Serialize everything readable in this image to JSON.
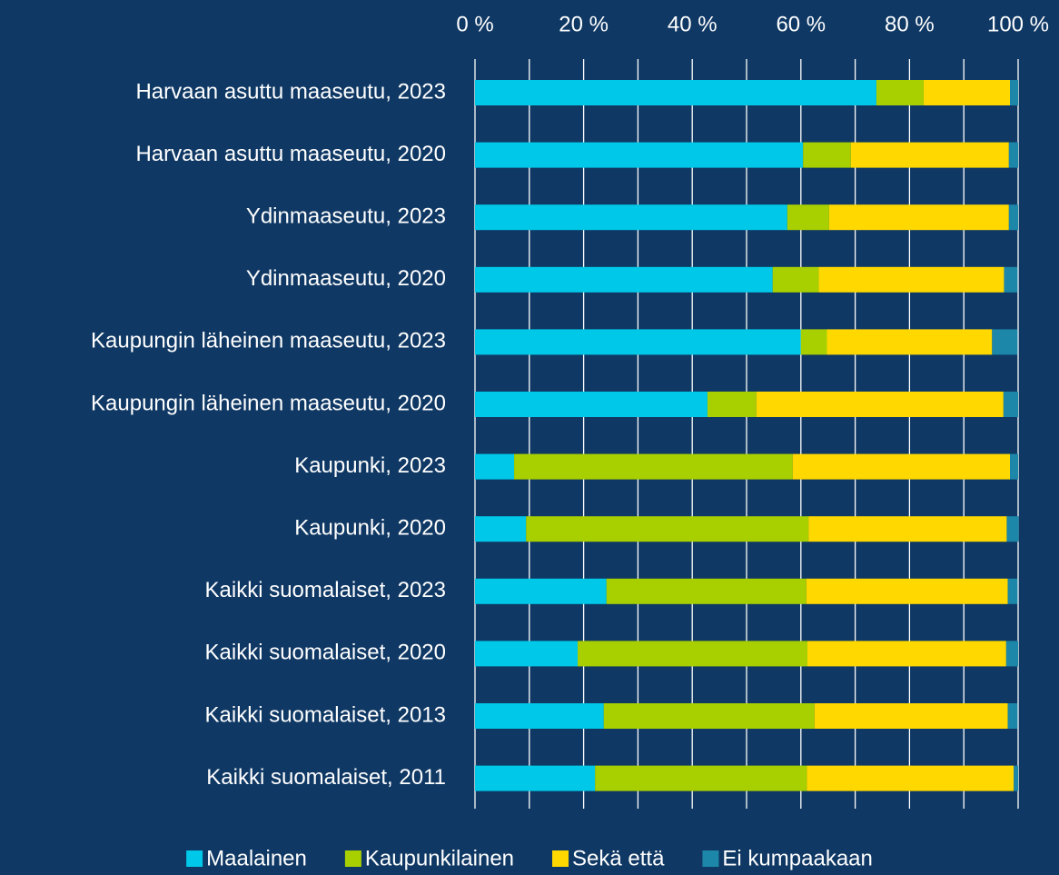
{
  "chart_data": {
    "type": "stacked-barh",
    "categories": [
      "Harvaan asuttu maaseutu, 2023",
      "Harvaan asuttu maaseutu, 2020",
      "Ydinmaaseutu, 2023",
      "Ydinmaaseutu, 2020",
      "Kaupungin läheinen maaseutu, 2023",
      "Kaupungin läheinen maaseutu, 2020",
      "Kaupunki, 2023",
      "Kaupunki, 2020",
      "Kaikki suomalaiset, 2023",
      "Kaikki suomalaiset, 2020",
      "Kaikki suomalaiset, 2013",
      "Kaikki suomalaiset, 2011"
    ],
    "series": [
      {
        "name": "Maalainen",
        "color": "#00c8e8",
        "values": [
          73.9,
          60.4,
          57.5,
          54.8,
          60.0,
          42.8,
          7.2,
          9.4,
          24.2,
          18.9,
          23.7,
          22.1
        ]
      },
      {
        "name": "Kaupunkilainen",
        "color": "#a8d000",
        "values": [
          8.7,
          8.8,
          7.7,
          8.5,
          4.8,
          9.0,
          51.3,
          52.0,
          36.8,
          42.3,
          38.8,
          39.0
        ]
      },
      {
        "name": "Sekä että",
        "color": "#ffd800",
        "values": [
          15.9,
          29.1,
          33.1,
          34.1,
          30.4,
          45.5,
          40.0,
          36.5,
          37.1,
          36.6,
          35.6,
          38.1
        ]
      },
      {
        "name": "Ei kumpaakaan",
        "color": "#1c87a8",
        "values": [
          1.5,
          1.7,
          1.7,
          2.5,
          4.7,
          2.7,
          1.5,
          2.2,
          1.8,
          2.2,
          1.8,
          0.8
        ]
      }
    ],
    "xlim": [
      0,
      100
    ],
    "xticks": [
      {
        "value": 0,
        "label": "0 %"
      },
      {
        "value": 20,
        "label": "20 %"
      },
      {
        "value": 40,
        "label": "40 %"
      },
      {
        "value": 60,
        "label": "60 %"
      },
      {
        "value": 80,
        "label": "80 %"
      },
      {
        "value": 100,
        "label": "100 %"
      }
    ],
    "minor_xticks": [
      10,
      30,
      50,
      70,
      90
    ],
    "grid": true,
    "legend": "bottom"
  }
}
